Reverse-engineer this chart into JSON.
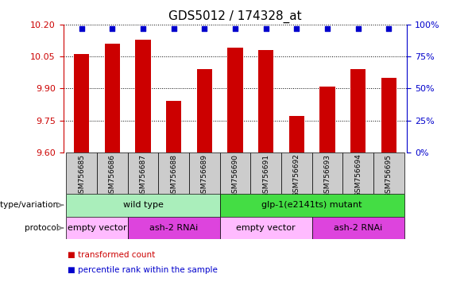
{
  "title": "GDS5012 / 174328_at",
  "samples": [
    "GSM756685",
    "GSM756686",
    "GSM756687",
    "GSM756688",
    "GSM756689",
    "GSM756690",
    "GSM756691",
    "GSM756692",
    "GSM756693",
    "GSM756694",
    "GSM756695"
  ],
  "transformed_count": [
    10.06,
    10.11,
    10.13,
    9.84,
    9.99,
    10.09,
    10.08,
    9.77,
    9.91,
    9.99,
    9.95
  ],
  "percentile_rank": [
    97,
    97,
    97,
    97,
    97,
    97,
    97,
    97,
    97,
    97,
    97
  ],
  "ylim_left": [
    9.6,
    10.2
  ],
  "ylim_right": [
    0,
    100
  ],
  "yticks_left": [
    9.6,
    9.75,
    9.9,
    10.05,
    10.2
  ],
  "yticks_right": [
    0,
    25,
    50,
    75,
    100
  ],
  "bar_color": "#cc0000",
  "dot_color": "#0000cc",
  "background_color": "#ffffff",
  "xtick_bg": "#cccccc",
  "genotype_groups": [
    {
      "label": "wild type",
      "start": 0,
      "end": 4,
      "color": "#aaeebb"
    },
    {
      "label": "glp-1(e2141ts) mutant",
      "start": 5,
      "end": 10,
      "color": "#44dd44"
    }
  ],
  "protocol_groups": [
    {
      "label": "empty vector",
      "start": 0,
      "end": 1,
      "color": "#ffbbff"
    },
    {
      "label": "ash-2 RNAi",
      "start": 2,
      "end": 4,
      "color": "#dd44dd"
    },
    {
      "label": "empty vector",
      "start": 5,
      "end": 7,
      "color": "#ffbbff"
    },
    {
      "label": "ash-2 RNAi",
      "start": 8,
      "end": 10,
      "color": "#dd44dd"
    }
  ],
  "tick_color_left": "#cc0000",
  "tick_color_right": "#0000cc",
  "title_fontsize": 11,
  "bar_width": 0.5,
  "genotype_label": "genotype/variation",
  "protocol_label": "protocol",
  "legend_line1": "transformed count",
  "legend_line2": "percentile rank within the sample"
}
